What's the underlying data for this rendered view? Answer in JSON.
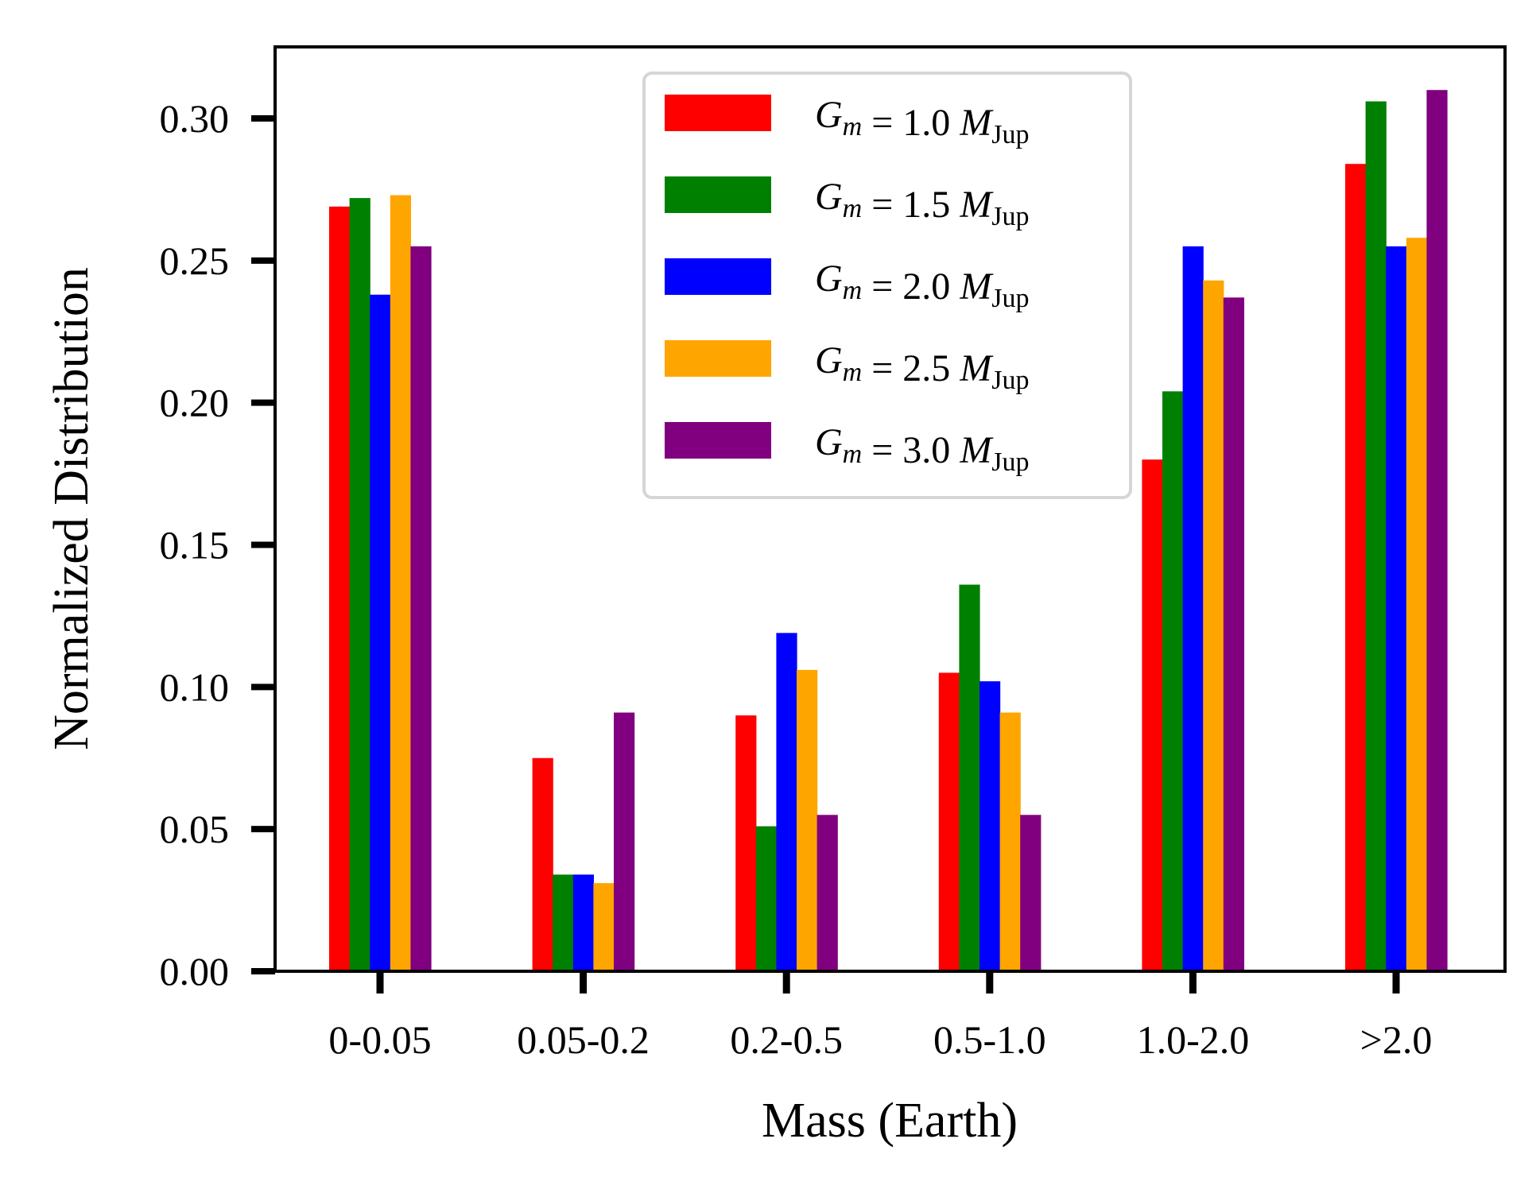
{
  "chart_data": {
    "type": "bar",
    "title": "",
    "xlabel": "Mass (Earth)",
    "ylabel": "Normalized Distribution",
    "ylim": [
      0,
      0.325
    ],
    "yticks": [
      "0.00",
      "0.05",
      "0.10",
      "0.15",
      "0.20",
      "0.25",
      "0.30"
    ],
    "categories": [
      "0-0.05",
      "0.05-0.2",
      "0.2-0.5",
      "0.5-1.0",
      "1.0-2.0",
      ">2.0"
    ],
    "legend_position": "top-center",
    "grid": false,
    "series": [
      {
        "name": "G_m = 1.0 M_Jup",
        "gm": "1.0",
        "color": "#ff0000",
        "values": [
          0.269,
          0.075,
          0.09,
          0.105,
          0.18,
          0.284
        ]
      },
      {
        "name": "G_m = 1.5 M_Jup",
        "gm": "1.5",
        "color": "#008000",
        "values": [
          0.272,
          0.034,
          0.051,
          0.136,
          0.204,
          0.306
        ]
      },
      {
        "name": "G_m = 2.0 M_Jup",
        "gm": "2.0",
        "color": "#0000ff",
        "values": [
          0.238,
          0.034,
          0.119,
          0.102,
          0.255,
          0.255
        ]
      },
      {
        "name": "G_m = 2.5 M_Jup",
        "gm": "2.5",
        "color": "#ffa500",
        "values": [
          0.273,
          0.031,
          0.106,
          0.091,
          0.243,
          0.258
        ]
      },
      {
        "name": "G_m = 3.0 M_Jup",
        "gm": "3.0",
        "color": "#800080",
        "values": [
          0.255,
          0.091,
          0.055,
          0.055,
          0.237,
          0.31
        ]
      }
    ],
    "legend_symbol": "G",
    "legend_subscript": "m",
    "legend_unit_symbol": "M",
    "legend_unit_subscript": "Jup"
  }
}
